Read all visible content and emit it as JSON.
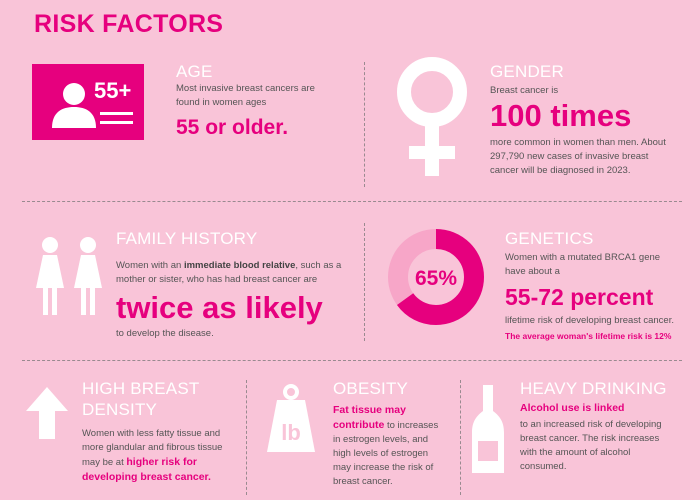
{
  "title": "RISK FACTORS",
  "age": {
    "badge": "55+",
    "heading": "AGE",
    "text": "Most invasive breast cancers are found in women ages",
    "highlight": "55 or older."
  },
  "gender": {
    "heading": "GENDER",
    "text_before": "Breast cancer is",
    "highlight": "100 times",
    "text_after": "more common in women than men. About 297,790 new cases of invasive breast cancer will be diagnosed in 2023."
  },
  "family_history": {
    "heading": "FAMILY HISTORY",
    "text_a": "Women with an ",
    "text_bold": "immediate blood relative",
    "text_b": ", such as a mother or sister, who has had breast cancer are",
    "highlight": "twice as likely",
    "text_after": "to develop the disease."
  },
  "genetics": {
    "donut_label": "65%",
    "donut_fraction": 0.65,
    "heading": "GENETICS",
    "text": "Women with a mutated BRCA1 gene have about a",
    "highlight": "55-72 percent",
    "text_after": "lifetime risk of developing breast cancer.",
    "note": "The average woman's lifetime risk is 12%"
  },
  "density": {
    "heading_line1": "HIGH BREAST",
    "heading_line2": "DENSITY",
    "text": "Women with less fatty tissue and more glandular and fibrous tissue may be at ",
    "highlight": "higher risk for developing breast cancer."
  },
  "obesity": {
    "heading": "OBESITY",
    "weight_label": "lb",
    "highlight": "Fat tissue may contribute",
    "text": " to increases in estrogen levels, and high levels of estrogen may increase the risk of breast cancer."
  },
  "drinking": {
    "heading": "HEAVY DRINKING",
    "highlight": "Alcohol use is linked",
    "text": "to an increased risk of developing breast cancer. The risk increases with the amount of alcohol consumed."
  },
  "colors": {
    "background": "#f9c4d8",
    "accent": "#e6007e",
    "donut_light": "#f7a6c8"
  }
}
